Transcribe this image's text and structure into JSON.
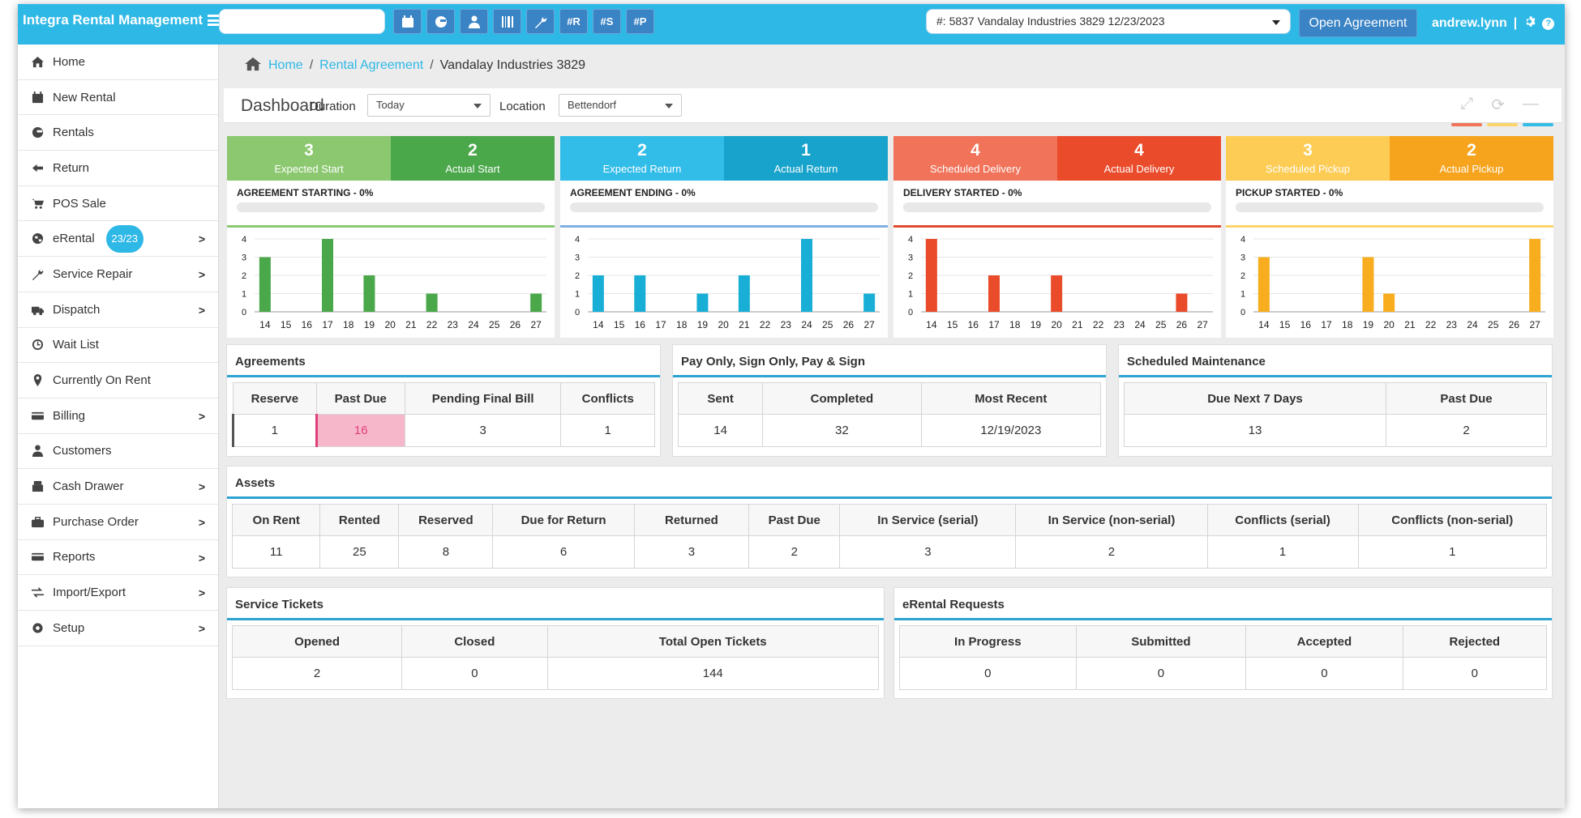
{
  "app": {
    "title": "Integra Rental Management"
  },
  "topbar": {
    "search_value": "",
    "buttons": [
      {
        "name": "calendar-button",
        "icon": "calendar-icon",
        "label": ""
      },
      {
        "name": "return-button",
        "icon": "refresh-arrow-icon",
        "label": ""
      },
      {
        "name": "customer-button",
        "icon": "user-icon",
        "label": ""
      },
      {
        "name": "barcode-button",
        "icon": "barcode-icon",
        "label": ""
      },
      {
        "name": "service-button",
        "icon": "wrench-icon",
        "label": ""
      },
      {
        "name": "hash-r-button",
        "icon": "",
        "label": "#R"
      },
      {
        "name": "hash-s-button",
        "icon": "",
        "label": "#S"
      },
      {
        "name": "hash-p-button",
        "icon": "",
        "label": "#P"
      }
    ],
    "agreement_select": "#: 5837 Vandalay Industries 3829 12/23/2023",
    "open_agreement_label": "Open Agreement",
    "user": "andrew.lynn",
    "divider": "|"
  },
  "sidebar": {
    "items": [
      {
        "label": "Home",
        "icon": "home-icon",
        "chevron": false
      },
      {
        "label": "New Rental",
        "icon": "calendar-icon",
        "chevron": false
      },
      {
        "label": "Rentals",
        "icon": "rentals-icon",
        "chevron": false
      },
      {
        "label": "Return",
        "icon": "return-icon",
        "chevron": false
      },
      {
        "label": "POS Sale",
        "icon": "cart-icon",
        "chevron": false
      },
      {
        "label": "eRental",
        "icon": "globe-icon",
        "chevron": true,
        "badge": "23/23"
      },
      {
        "label": "Service Repair",
        "icon": "wrench-icon",
        "chevron": true
      },
      {
        "label": "Dispatch",
        "icon": "truck-icon",
        "chevron": true
      },
      {
        "label": "Wait List",
        "icon": "clock-icon",
        "chevron": false
      },
      {
        "label": "Currently On Rent",
        "icon": "map-pin-icon",
        "chevron": false
      },
      {
        "label": "Billing",
        "icon": "card-icon",
        "chevron": true
      },
      {
        "label": "Customers",
        "icon": "user-icon",
        "chevron": false
      },
      {
        "label": "Cash Drawer",
        "icon": "register-icon",
        "chevron": true
      },
      {
        "label": "Purchase Order",
        "icon": "briefcase-icon",
        "chevron": true
      },
      {
        "label": "Reports",
        "icon": "card-icon",
        "chevron": true
      },
      {
        "label": "Import/Export",
        "icon": "exchange-icon",
        "chevron": true
      },
      {
        "label": "Setup",
        "icon": "gear-icon",
        "chevron": true
      }
    ],
    "chevron_glyph": ">"
  },
  "breadcrumb": {
    "home": "Home",
    "sep": "/",
    "rental": "Rental Agreement",
    "current": "Vandalay Industries 3829"
  },
  "dashboard": {
    "title": "Dashboard",
    "duration_label": "Duration",
    "duration_value": "Today",
    "location_label": "Location",
    "location_value": "Bettendorf"
  },
  "cards": [
    {
      "left": {
        "value": "3",
        "label": "Expected Start"
      },
      "right": {
        "value": "2",
        "label": "Actual Start"
      },
      "progress_label": "AGREEMENT STARTING - 0%",
      "progress": 0,
      "colors": {
        "left": "#8cc870",
        "right": "#4aa74a",
        "sep": "#8cc870",
        "bar": "#4aa74a"
      }
    },
    {
      "left": {
        "value": "2",
        "label": "Expected Return"
      },
      "right": {
        "value": "1",
        "label": "Actual Return"
      },
      "progress_label": "AGREEMENT ENDING - 0%",
      "progress": 0,
      "colors": {
        "left": "#32bce8",
        "right": "#17a3cb",
        "sep": "#7fb0df",
        "bar": "#19aed6"
      }
    },
    {
      "left": {
        "value": "4",
        "label": "Scheduled Delivery"
      },
      "right": {
        "value": "4",
        "label": "Actual Delivery"
      },
      "progress_label": "DELIVERY STARTED - 0%",
      "progress": 0,
      "colors": {
        "left": "#f0735a",
        "right": "#ea4b2b",
        "sep": "#e24a2f",
        "bar": "#ea4b2b"
      }
    },
    {
      "left": {
        "value": "3",
        "label": "Scheduled Pickup"
      },
      "right": {
        "value": "2",
        "label": "Actual Pickup"
      },
      "progress_label": "PICKUP STARTED - 0%",
      "progress": 0,
      "colors": {
        "left": "#fccc55",
        "right": "#f6a41e",
        "sep": "#fcd56a",
        "bar": "#f8ad1e"
      }
    }
  ],
  "chart_data": [
    {
      "type": "bar",
      "x": [
        "14",
        "15",
        "16",
        "17",
        "18",
        "19",
        "20",
        "21",
        "22",
        "23",
        "24",
        "25",
        "26",
        "27"
      ],
      "values": [
        3,
        0,
        0,
        4,
        0,
        2,
        0,
        0,
        1,
        0,
        0,
        0,
        0,
        1
      ],
      "ylim": [
        0,
        4
      ],
      "yticks": [
        "0",
        "1",
        "2",
        "3",
        "4"
      ],
      "grid": true
    },
    {
      "type": "bar",
      "x": [
        "14",
        "15",
        "16",
        "17",
        "18",
        "19",
        "20",
        "21",
        "22",
        "23",
        "24",
        "25",
        "26",
        "27"
      ],
      "values": [
        2,
        0,
        2,
        0,
        0,
        1,
        0,
        2,
        0,
        0,
        4,
        0,
        0,
        1
      ],
      "ylim": [
        0,
        4
      ],
      "yticks": [
        "0",
        "1",
        "2",
        "3",
        "4"
      ],
      "grid": true
    },
    {
      "type": "bar",
      "x": [
        "14",
        "15",
        "16",
        "17",
        "18",
        "19",
        "20",
        "21",
        "22",
        "23",
        "24",
        "25",
        "26",
        "27"
      ],
      "values": [
        4,
        0,
        0,
        2,
        0,
        0,
        2,
        0,
        0,
        0,
        0,
        0,
        1,
        0
      ],
      "ylim": [
        0,
        4
      ],
      "yticks": [
        "0",
        "1",
        "2",
        "3",
        "4"
      ],
      "grid": true
    },
    {
      "type": "bar",
      "x": [
        "14",
        "15",
        "16",
        "17",
        "18",
        "19",
        "20",
        "21",
        "22",
        "23",
        "24",
        "25",
        "26",
        "27"
      ],
      "values": [
        3,
        0,
        0,
        0,
        0,
        3,
        1,
        0,
        0,
        0,
        0,
        0,
        0,
        4
      ],
      "ylim": [
        0,
        4
      ],
      "yticks": [
        "0",
        "1",
        "2",
        "3",
        "4"
      ],
      "grid": true
    }
  ],
  "agreements": {
    "title": "Agreements",
    "headers": [
      "Reserve",
      "Past Due",
      "Pending Final Bill",
      "Conflicts"
    ],
    "values": [
      "1",
      "16",
      "3",
      "1"
    ]
  },
  "pay_sign": {
    "title": "Pay Only, Sign Only, Pay & Sign",
    "headers": [
      "Sent",
      "Completed",
      "Most Recent"
    ],
    "values": [
      "14",
      "32",
      "12/19/2023"
    ]
  },
  "maintenance": {
    "title": "Scheduled Maintenance",
    "headers": [
      "Due Next 7 Days",
      "Past Due"
    ],
    "values": [
      "13",
      "2"
    ]
  },
  "assets": {
    "title": "Assets",
    "headers": [
      "On Rent",
      "Rented",
      "Reserved",
      "Due for Return",
      "Returned",
      "Past Due",
      "In Service (serial)",
      "In Service (non-serial)",
      "Conflicts (serial)",
      "Conflicts (non-serial)"
    ],
    "values": [
      "11",
      "25",
      "8",
      "6",
      "3",
      "2",
      "3",
      "2",
      "1",
      "1"
    ]
  },
  "service_tickets": {
    "title": "Service Tickets",
    "headers": [
      "Opened",
      "Closed",
      "Total Open Tickets"
    ],
    "values": [
      "2",
      "0",
      "144"
    ]
  },
  "erental_requests": {
    "title": "eRental Requests",
    "headers": [
      "In Progress",
      "Submitted",
      "Accepted",
      "Rejected"
    ],
    "values": [
      "0",
      "0",
      "0",
      "0"
    ]
  },
  "colors": {
    "accent": "#2eb8e6",
    "button": "#3a83c4",
    "panel_rule": "#2ea3d1",
    "past_due_bg": "#f7b7cb",
    "past_due_text": "#e0407a"
  }
}
